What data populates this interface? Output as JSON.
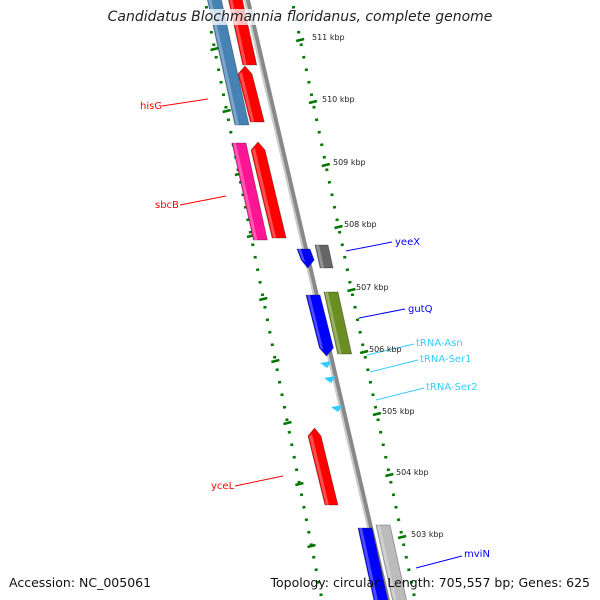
{
  "title": "Candidatus Blochmannia floridanus, complete genome",
  "footer": {
    "accession": "Accession: NC_005061",
    "summary": "Topology: circular; Length: 705,557 bp; Genes: 625"
  },
  "ticks": [
    "511 kbp",
    "510 kbp",
    "509 kbp",
    "508 kbp",
    "507 kbp",
    "506 kbp",
    "505 kbp",
    "504 kbp",
    "503 kbp"
  ],
  "gene_labels": {
    "hisG": "hisG",
    "sbcB": "sbcB",
    "yceL": "yceL",
    "yeeX": "yeeX",
    "gutQ": "gutQ",
    "tRNA_Asn": "tRNA-Asn",
    "tRNA_Ser1": "tRNA-Ser1",
    "tRNA_Ser2": "tRNA-Ser2",
    "mviN": "mviN"
  },
  "colors": {
    "red": "#ff0000",
    "blue": "#0000ff",
    "cyan": "#33ccff",
    "tick": "#007700",
    "backbone": "#888888"
  }
}
